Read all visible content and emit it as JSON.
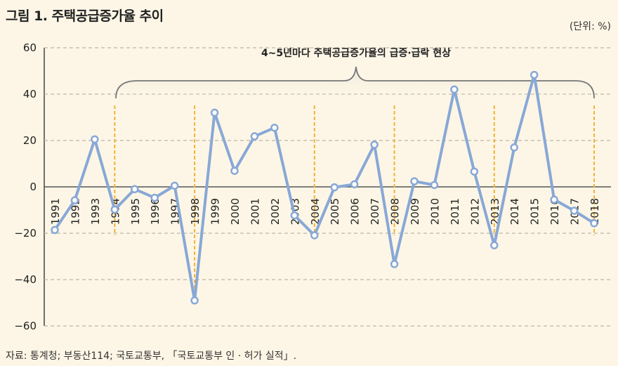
{
  "header": {
    "title": "그림 1.  주택공급증가율 추이",
    "unit": "(단위: %)"
  },
  "footer": {
    "source": "자료: 통계청; 부동산114; 국토교통부, 「국토교통부 인 · 허가 실적」."
  },
  "chart_data": {
    "type": "line",
    "title": "주택공급증가율 추이",
    "xlabel": "",
    "ylabel": "",
    "ylim": [
      -60,
      60
    ],
    "yticks": [
      60,
      40,
      20,
      0,
      -20,
      -40,
      -60
    ],
    "ytick_labels": [
      "60",
      "40",
      "20",
      "0",
      "−20",
      "−40",
      "−60"
    ],
    "grid": true,
    "x": [
      "1991",
      "1992",
      "1993",
      "1994",
      "1995",
      "1996",
      "1997",
      "1998",
      "1999",
      "2000",
      "2001",
      "2002",
      "2003",
      "2004",
      "2005",
      "2006",
      "2007",
      "2008",
      "2009",
      "2010",
      "2011",
      "2012",
      "2013",
      "2014",
      "2015",
      "2016",
      "2017",
      "2018"
    ],
    "series": [
      {
        "name": "주택공급증가율",
        "color": "#88a8d6",
        "values": [
          -18.6,
          -5.8,
          20.5,
          -9.8,
          -1.0,
          -4.7,
          0.5,
          -49.0,
          32.0,
          6.9,
          21.8,
          25.5,
          -12.3,
          -20.9,
          -0.2,
          1.1,
          18.2,
          -33.3,
          2.4,
          0.8,
          42.0,
          6.6,
          -25.2,
          17.0,
          48.3,
          -5.5,
          -10.3,
          -15.7
        ]
      }
    ],
    "highlight_years": [
      "1994",
      "1998",
      "2004",
      "2008",
      "2013",
      "2018"
    ],
    "highlight_color": "#f2b233",
    "annotation": "4~5년마다 주택공급증가율의 급증·급락 현상"
  }
}
